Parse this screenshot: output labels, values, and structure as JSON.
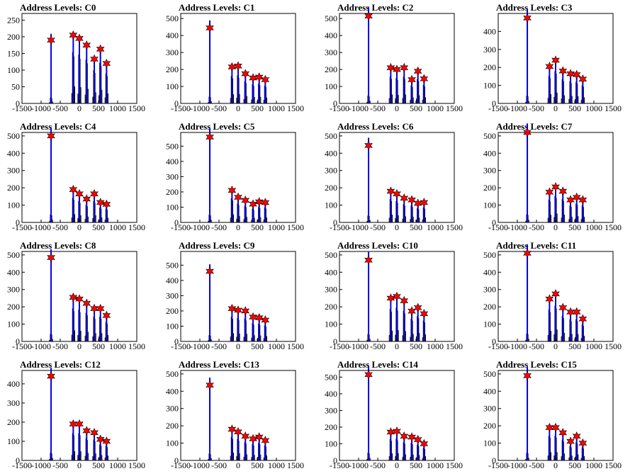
{
  "colors": {
    "hist_black": "#000000",
    "hist_blue": "#0000ee",
    "marker_fill": "#ff0000",
    "marker_stroke": "#000000"
  },
  "chart_data": [
    {
      "type": "bar",
      "title": "Address Levels: C0",
      "xlim": [
        -1500,
        1500
      ],
      "ylim": [
        0,
        270
      ],
      "x_ticks": [
        -1500,
        -1000,
        -500,
        0,
        500,
        1000,
        1500
      ],
      "y_ticks": [
        0,
        50,
        100,
        150,
        200,
        250
      ],
      "peaks": [
        {
          "x": -740,
          "y": 190
        },
        {
          "x": -160,
          "y": 205
        },
        {
          "x": 0,
          "y": 195
        },
        {
          "x": 190,
          "y": 175
        },
        {
          "x": 390,
          "y": 133
        },
        {
          "x": 550,
          "y": 163
        },
        {
          "x": 710,
          "y": 120
        }
      ]
    },
    {
      "type": "bar",
      "title": "Address Levels: C1",
      "xlim": [
        -1500,
        1500
      ],
      "ylim": [
        0,
        530
      ],
      "x_ticks": [
        -1500,
        -1000,
        -500,
        0,
        500,
        1000,
        1500
      ],
      "y_ticks": [
        0,
        100,
        200,
        300,
        400,
        500
      ],
      "peaks": [
        {
          "x": -740,
          "y": 445
        },
        {
          "x": -160,
          "y": 215
        },
        {
          "x": 0,
          "y": 220
        },
        {
          "x": 190,
          "y": 175
        },
        {
          "x": 390,
          "y": 150
        },
        {
          "x": 550,
          "y": 155
        },
        {
          "x": 710,
          "y": 140
        }
      ]
    },
    {
      "type": "bar",
      "title": "Address Levels: C2",
      "xlim": [
        -1500,
        1500
      ],
      "ylim": [
        0,
        530
      ],
      "x_ticks": [
        -1500,
        -1000,
        -500,
        0,
        500,
        1000,
        1500
      ],
      "y_ticks": [
        0,
        100,
        200,
        300,
        400,
        500
      ],
      "peaks": [
        {
          "x": -740,
          "y": 515
        },
        {
          "x": -160,
          "y": 210
        },
        {
          "x": 0,
          "y": 200
        },
        {
          "x": 190,
          "y": 210
        },
        {
          "x": 390,
          "y": 140
        },
        {
          "x": 550,
          "y": 190
        },
        {
          "x": 710,
          "y": 145
        }
      ]
    },
    {
      "type": "bar",
      "title": "Address Levels: C3",
      "xlim": [
        -1500,
        1500
      ],
      "ylim": [
        0,
        500
      ],
      "x_ticks": [
        -1500,
        -1000,
        -500,
        0,
        500,
        1000,
        1500
      ],
      "y_ticks": [
        0,
        100,
        200,
        300,
        400
      ],
      "peaks": [
        {
          "x": -740,
          "y": 475
        },
        {
          "x": -160,
          "y": 205
        },
        {
          "x": 0,
          "y": 240
        },
        {
          "x": 190,
          "y": 180
        },
        {
          "x": 390,
          "y": 165
        },
        {
          "x": 550,
          "y": 160
        },
        {
          "x": 710,
          "y": 135
        }
      ]
    },
    {
      "type": "bar",
      "title": "Address Levels: C4",
      "xlim": [
        -1500,
        1500
      ],
      "ylim": [
        0,
        520
      ],
      "x_ticks": [
        -1500,
        -1000,
        -500,
        0,
        500,
        1000,
        1500
      ],
      "y_ticks": [
        0,
        100,
        200,
        300,
        400,
        500
      ],
      "peaks": [
        {
          "x": -740,
          "y": 500
        },
        {
          "x": -160,
          "y": 190
        },
        {
          "x": 0,
          "y": 165
        },
        {
          "x": 190,
          "y": 135
        },
        {
          "x": 390,
          "y": 165
        },
        {
          "x": 550,
          "y": 115
        },
        {
          "x": 710,
          "y": 105
        }
      ]
    },
    {
      "type": "bar",
      "title": "Address Levels: C5",
      "xlim": [
        -1500,
        1500
      ],
      "ylim": [
        0,
        590
      ],
      "x_ticks": [
        -1500,
        -1000,
        -500,
        0,
        500,
        1000,
        1500
      ],
      "y_ticks": [
        0,
        100,
        200,
        300,
        400,
        500
      ],
      "peaks": [
        {
          "x": -740,
          "y": 560
        },
        {
          "x": -160,
          "y": 210
        },
        {
          "x": 0,
          "y": 165
        },
        {
          "x": 190,
          "y": 145
        },
        {
          "x": 390,
          "y": 120
        },
        {
          "x": 550,
          "y": 135
        },
        {
          "x": 710,
          "y": 130
        }
      ]
    },
    {
      "type": "bar",
      "title": "Address Levels: C6",
      "xlim": [
        -1500,
        1500
      ],
      "ylim": [
        0,
        520
      ],
      "x_ticks": [
        -1500,
        -1000,
        -500,
        0,
        500,
        1000,
        1500
      ],
      "y_ticks": [
        0,
        100,
        200,
        300,
        400,
        500
      ],
      "peaks": [
        {
          "x": -740,
          "y": 445
        },
        {
          "x": -160,
          "y": 180
        },
        {
          "x": 0,
          "y": 165
        },
        {
          "x": 190,
          "y": 140
        },
        {
          "x": 390,
          "y": 130
        },
        {
          "x": 550,
          "y": 110
        },
        {
          "x": 710,
          "y": 115
        }
      ]
    },
    {
      "type": "bar",
      "title": "Address Levels: C7",
      "xlim": [
        -1500,
        1500
      ],
      "ylim": [
        0,
        520
      ],
      "x_ticks": [
        -1500,
        -1000,
        -500,
        0,
        500,
        1000,
        1500
      ],
      "y_ticks": [
        0,
        100,
        200,
        300,
        400,
        500
      ],
      "peaks": [
        {
          "x": -740,
          "y": 520
        },
        {
          "x": -160,
          "y": 175
        },
        {
          "x": 0,
          "y": 205
        },
        {
          "x": 190,
          "y": 180
        },
        {
          "x": 390,
          "y": 130
        },
        {
          "x": 550,
          "y": 145
        },
        {
          "x": 710,
          "y": 130
        }
      ]
    },
    {
      "type": "bar",
      "title": "Address Levels: C8",
      "xlim": [
        -1500,
        1500
      ],
      "ylim": [
        0,
        520
      ],
      "x_ticks": [
        -1500,
        -1000,
        -500,
        0,
        500,
        1000,
        1500
      ],
      "y_ticks": [
        0,
        100,
        200,
        300,
        400,
        500
      ],
      "peaks": [
        {
          "x": -740,
          "y": 485
        },
        {
          "x": -160,
          "y": 255
        },
        {
          "x": 0,
          "y": 245
        },
        {
          "x": 190,
          "y": 220
        },
        {
          "x": 390,
          "y": 190
        },
        {
          "x": 550,
          "y": 190
        },
        {
          "x": 710,
          "y": 150
        }
      ]
    },
    {
      "type": "bar",
      "title": "Address Levels: C9",
      "xlim": [
        -1500,
        1500
      ],
      "ylim": [
        0,
        590
      ],
      "x_ticks": [
        -1500,
        -1000,
        -500,
        0,
        500,
        1000,
        1500
      ],
      "y_ticks": [
        0,
        100,
        200,
        300,
        400,
        500
      ],
      "peaks": [
        {
          "x": -740,
          "y": 460
        },
        {
          "x": -160,
          "y": 215
        },
        {
          "x": 0,
          "y": 205
        },
        {
          "x": 190,
          "y": 200
        },
        {
          "x": 390,
          "y": 160
        },
        {
          "x": 550,
          "y": 155
        },
        {
          "x": 710,
          "y": 140
        }
      ]
    },
    {
      "type": "bar",
      "title": "Address Levels: C10",
      "xlim": [
        -1500,
        1500
      ],
      "ylim": [
        0,
        520
      ],
      "x_ticks": [
        -1500,
        -1000,
        -500,
        0,
        500,
        1000,
        1500
      ],
      "y_ticks": [
        0,
        100,
        200,
        300,
        400,
        500
      ],
      "peaks": [
        {
          "x": -740,
          "y": 470
        },
        {
          "x": -160,
          "y": 250
        },
        {
          "x": 0,
          "y": 260
        },
        {
          "x": 190,
          "y": 235
        },
        {
          "x": 390,
          "y": 175
        },
        {
          "x": 550,
          "y": 195
        },
        {
          "x": 710,
          "y": 160
        }
      ]
    },
    {
      "type": "bar",
      "title": "Address Levels: C11",
      "xlim": [
        -1500,
        1500
      ],
      "ylim": [
        0,
        520
      ],
      "x_ticks": [
        -1500,
        -1000,
        -500,
        0,
        500,
        1000,
        1500
      ],
      "y_ticks": [
        0,
        100,
        200,
        300,
        400,
        500
      ],
      "peaks": [
        {
          "x": -740,
          "y": 510
        },
        {
          "x": -160,
          "y": 245
        },
        {
          "x": 0,
          "y": 275
        },
        {
          "x": 190,
          "y": 195
        },
        {
          "x": 390,
          "y": 170
        },
        {
          "x": 550,
          "y": 170
        },
        {
          "x": 710,
          "y": 130
        }
      ]
    },
    {
      "type": "bar",
      "title": "Address Levels: C12",
      "xlim": [
        -1500,
        1500
      ],
      "ylim": [
        0,
        470
      ],
      "x_ticks": [
        -1500,
        -1000,
        -500,
        0,
        500,
        1000,
        1500
      ],
      "y_ticks": [
        0,
        100,
        200,
        300,
        400
      ],
      "peaks": [
        {
          "x": -740,
          "y": 440
        },
        {
          "x": -160,
          "y": 190
        },
        {
          "x": 0,
          "y": 190
        },
        {
          "x": 190,
          "y": 155
        },
        {
          "x": 390,
          "y": 145
        },
        {
          "x": 550,
          "y": 110
        },
        {
          "x": 710,
          "y": 100
        }
      ]
    },
    {
      "type": "bar",
      "title": "Address Levels: C13",
      "xlim": [
        -1500,
        1500
      ],
      "ylim": [
        0,
        520
      ],
      "x_ticks": [
        -1500,
        -1000,
        -500,
        0,
        500,
        1000,
        1500
      ],
      "y_ticks": [
        0,
        100,
        200,
        300,
        400,
        500
      ],
      "peaks": [
        {
          "x": -740,
          "y": 435
        },
        {
          "x": -160,
          "y": 180
        },
        {
          "x": 0,
          "y": 165
        },
        {
          "x": 190,
          "y": 140
        },
        {
          "x": 390,
          "y": 125
        },
        {
          "x": 550,
          "y": 135
        },
        {
          "x": 710,
          "y": 115
        }
      ]
    },
    {
      "type": "bar",
      "title": "Address Levels: C14",
      "xlim": [
        -1500,
        1500
      ],
      "ylim": [
        0,
        540
      ],
      "x_ticks": [
        -1500,
        -1000,
        -500,
        0,
        500,
        1000,
        1500
      ],
      "y_ticks": [
        0,
        100,
        200,
        300,
        400,
        500
      ],
      "peaks": [
        {
          "x": -740,
          "y": 515
        },
        {
          "x": -160,
          "y": 170
        },
        {
          "x": 0,
          "y": 175
        },
        {
          "x": 190,
          "y": 145
        },
        {
          "x": 390,
          "y": 140
        },
        {
          "x": 550,
          "y": 125
        },
        {
          "x": 710,
          "y": 100
        }
      ]
    },
    {
      "type": "bar",
      "title": "Address Levels: C15",
      "xlim": [
        -1500,
        1500
      ],
      "ylim": [
        0,
        520
      ],
      "x_ticks": [
        -1500,
        -1000,
        -500,
        0,
        500,
        1000,
        1500
      ],
      "y_ticks": [
        0,
        100,
        200,
        300,
        400,
        500
      ],
      "peaks": [
        {
          "x": -740,
          "y": 490
        },
        {
          "x": -160,
          "y": 190
        },
        {
          "x": 0,
          "y": 190
        },
        {
          "x": 190,
          "y": 160
        },
        {
          "x": 390,
          "y": 110
        },
        {
          "x": 550,
          "y": 140
        },
        {
          "x": 710,
          "y": 100
        }
      ]
    }
  ]
}
